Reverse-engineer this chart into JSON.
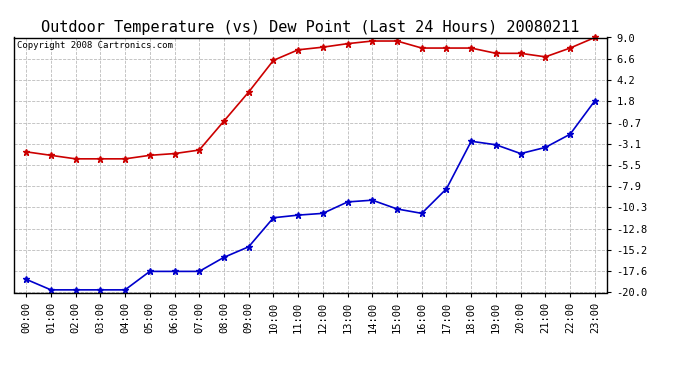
{
  "title": "Outdoor Temperature (vs) Dew Point (Last 24 Hours) 20080211",
  "copyright_text": "Copyright 2008 Cartronics.com",
  "x_labels": [
    "00:00",
    "01:00",
    "02:00",
    "03:00",
    "04:00",
    "05:00",
    "06:00",
    "07:00",
    "08:00",
    "09:00",
    "10:00",
    "11:00",
    "12:00",
    "13:00",
    "14:00",
    "15:00",
    "16:00",
    "17:00",
    "18:00",
    "19:00",
    "20:00",
    "21:00",
    "22:00",
    "23:00"
  ],
  "temp_data": [
    -4.0,
    -4.4,
    -4.8,
    -4.8,
    -4.8,
    -4.4,
    -4.2,
    -3.8,
    -0.5,
    2.8,
    6.4,
    7.6,
    7.9,
    8.3,
    8.6,
    8.6,
    7.8,
    7.8,
    7.8,
    7.2,
    7.2,
    6.8,
    7.8,
    9.0
  ],
  "dew_data": [
    -18.5,
    -19.7,
    -19.7,
    -19.7,
    -19.7,
    -17.6,
    -17.6,
    -17.6,
    -16.0,
    -14.8,
    -11.5,
    -11.2,
    -11.0,
    -9.7,
    -9.5,
    -10.5,
    -11.0,
    -8.2,
    -2.8,
    -3.2,
    -4.2,
    -3.5,
    -2.0,
    1.8
  ],
  "temp_color": "#cc0000",
  "dew_color": "#0000cc",
  "yticks": [
    9.0,
    6.6,
    4.2,
    1.8,
    -0.7,
    -3.1,
    -5.5,
    -7.9,
    -10.3,
    -12.8,
    -15.2,
    -17.6,
    -20.0
  ],
  "ymin": -20.0,
  "ymax": 9.0,
  "bg_color": "#ffffff",
  "grid_color": "#bbbbbb",
  "marker": "*",
  "marker_size": 5,
  "line_width": 1.2,
  "title_fontsize": 11,
  "tick_fontsize": 7.5,
  "copyright_fontsize": 6.5
}
